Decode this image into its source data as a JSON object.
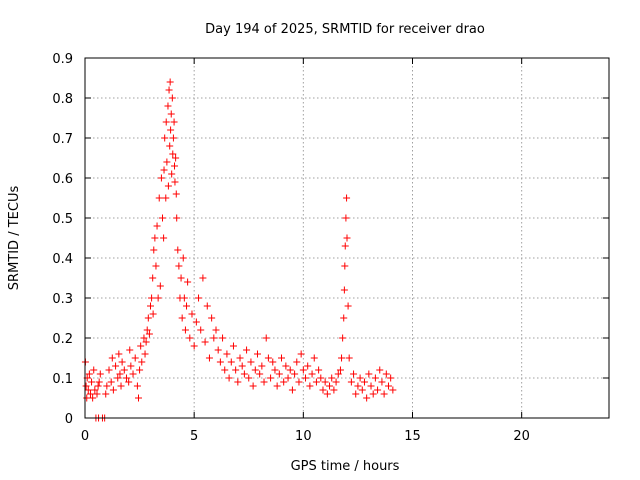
{
  "chart_data": {
    "type": "scatter",
    "title": "Day 194 of 2025, SRMTID for receiver drao",
    "xlabel": "GPS time / hours",
    "ylabel": "SRMTID / TECUs",
    "xlim": [
      0,
      24
    ],
    "ylim": [
      0,
      0.9
    ],
    "xticks": [
      0,
      5,
      10,
      15,
      20
    ],
    "yticks": [
      0,
      0.1,
      0.2,
      0.3,
      0.4,
      0.5,
      0.6,
      0.7,
      0.8,
      0.9
    ],
    "xtick_labels": [
      "0",
      "5",
      "10",
      "15",
      "20"
    ],
    "ytick_labels": [
      "0",
      "0.1",
      "0.2",
      "0.3",
      "0.4",
      "0.5",
      "0.6",
      "0.7",
      "0.8",
      "0.9"
    ],
    "grid": true,
    "marker": "plus",
    "color": "#ff0000",
    "series": [
      {
        "name": "drao",
        "x": [
          0.02,
          0.05,
          0.08,
          0.1,
          0.15,
          0.2,
          0.25,
          0.3,
          0.35,
          0.4,
          0.45,
          0.5,
          0.55,
          0.6,
          0.62,
          0.65,
          0.7,
          0.8,
          0.9,
          0.95,
          1.0,
          1.1,
          1.2,
          1.25,
          1.3,
          1.4,
          1.5,
          1.55,
          1.6,
          1.65,
          1.7,
          1.8,
          1.9,
          2.0,
          2.05,
          2.1,
          2.2,
          2.3,
          2.4,
          2.45,
          2.5,
          2.55,
          2.6,
          2.7,
          2.75,
          2.8,
          2.85,
          2.9,
          2.95,
          3.0,
          3.05,
          3.1,
          3.12,
          3.15,
          3.2,
          3.25,
          3.3,
          3.35,
          3.4,
          3.45,
          3.5,
          3.55,
          3.6,
          3.62,
          3.65,
          3.7,
          3.72,
          3.75,
          3.8,
          3.82,
          3.85,
          3.88,
          3.9,
          3.92,
          3.95,
          3.97,
          4.0,
          4.02,
          4.05,
          4.08,
          4.1,
          4.12,
          4.15,
          4.18,
          4.2,
          4.25,
          4.3,
          4.35,
          4.4,
          4.45,
          4.5,
          4.55,
          4.6,
          4.65,
          4.7,
          4.8,
          4.9,
          5.0,
          5.1,
          5.2,
          5.3,
          5.4,
          5.5,
          5.6,
          5.7,
          5.8,
          5.9,
          6.0,
          6.1,
          6.2,
          6.3,
          6.4,
          6.5,
          6.6,
          6.7,
          6.8,
          6.9,
          7.0,
          7.1,
          7.2,
          7.3,
          7.4,
          7.5,
          7.6,
          7.7,
          7.8,
          7.9,
          8.0,
          8.1,
          8.2,
          8.3,
          8.4,
          8.5,
          8.6,
          8.7,
          8.8,
          8.9,
          9.0,
          9.1,
          9.2,
          9.3,
          9.4,
          9.5,
          9.6,
          9.7,
          9.8,
          9.9,
          10.0,
          10.1,
          10.2,
          10.3,
          10.4,
          10.5,
          10.6,
          10.7,
          10.8,
          10.9,
          11.0,
          11.1,
          11.2,
          11.3,
          11.4,
          11.5,
          11.6,
          11.7,
          11.75,
          11.8,
          11.85,
          11.88,
          11.9,
          11.92,
          11.95,
          11.98,
          12.0,
          12.05,
          12.1,
          12.2,
          12.3,
          12.4,
          12.5,
          12.6,
          12.7,
          12.8,
          12.9,
          13.0,
          13.1,
          13.2,
          13.3,
          13.4,
          13.5,
          13.6,
          13.7,
          13.8,
          13.9,
          14.0,
          14.1
        ],
        "y": [
          0.14,
          0.08,
          0.05,
          0.1,
          0.07,
          0.11,
          0.06,
          0.09,
          0.05,
          0.12,
          0.07,
          0.0,
          0.06,
          0.08,
          0.0,
          0.09,
          0.11,
          0.0,
          0.0,
          0.06,
          0.08,
          0.12,
          0.09,
          0.15,
          0.07,
          0.13,
          0.1,
          0.16,
          0.11,
          0.08,
          0.14,
          0.12,
          0.1,
          0.09,
          0.17,
          0.13,
          0.11,
          0.15,
          0.08,
          0.05,
          0.12,
          0.18,
          0.14,
          0.2,
          0.16,
          0.19,
          0.22,
          0.25,
          0.21,
          0.28,
          0.3,
          0.35,
          0.26,
          0.42,
          0.45,
          0.38,
          0.48,
          0.3,
          0.55,
          0.33,
          0.6,
          0.5,
          0.45,
          0.62,
          0.7,
          0.55,
          0.74,
          0.64,
          0.78,
          0.58,
          0.82,
          0.68,
          0.84,
          0.72,
          0.76,
          0.61,
          0.8,
          0.66,
          0.7,
          0.74,
          0.63,
          0.59,
          0.65,
          0.56,
          0.5,
          0.42,
          0.38,
          0.3,
          0.35,
          0.25,
          0.4,
          0.3,
          0.22,
          0.28,
          0.34,
          0.2,
          0.26,
          0.18,
          0.24,
          0.3,
          0.22,
          0.35,
          0.19,
          0.28,
          0.15,
          0.25,
          0.2,
          0.22,
          0.17,
          0.14,
          0.2,
          0.12,
          0.16,
          0.1,
          0.14,
          0.18,
          0.12,
          0.09,
          0.15,
          0.13,
          0.11,
          0.17,
          0.1,
          0.14,
          0.08,
          0.12,
          0.16,
          0.11,
          0.13,
          0.09,
          0.2,
          0.15,
          0.1,
          0.14,
          0.12,
          0.08,
          0.11,
          0.15,
          0.09,
          0.13,
          0.1,
          0.12,
          0.07,
          0.11,
          0.14,
          0.09,
          0.16,
          0.12,
          0.1,
          0.13,
          0.08,
          0.11,
          0.15,
          0.09,
          0.12,
          0.1,
          0.07,
          0.09,
          0.06,
          0.08,
          0.1,
          0.07,
          0.09,
          0.11,
          0.12,
          0.15,
          0.2,
          0.25,
          0.32,
          0.38,
          0.43,
          0.5,
          0.55,
          0.45,
          0.28,
          0.15,
          0.09,
          0.11,
          0.06,
          0.08,
          0.1,
          0.07,
          0.09,
          0.05,
          0.11,
          0.08,
          0.06,
          0.1,
          0.07,
          0.12,
          0.09,
          0.06,
          0.11,
          0.08,
          0.1,
          0.07
        ]
      }
    ]
  }
}
